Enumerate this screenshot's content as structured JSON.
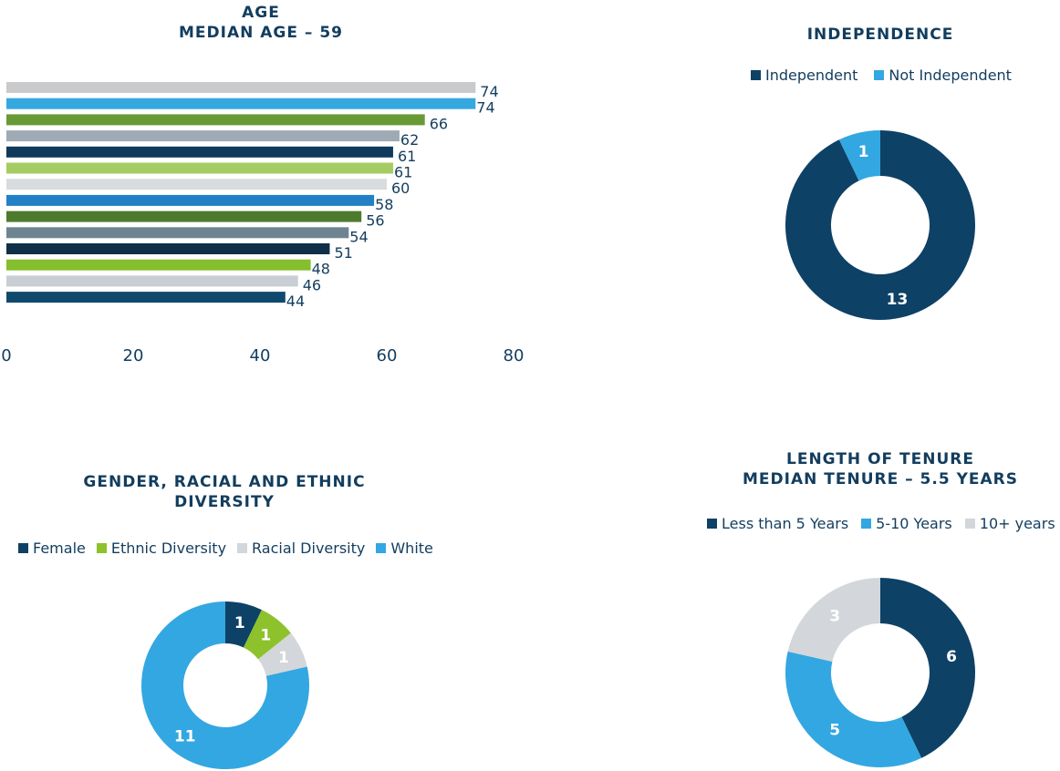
{
  "chart_data": [
    {
      "id": "age",
      "type": "bar",
      "title": "AGE",
      "subtitle": "MEDIAN AGE – 59",
      "orientation": "horizontal",
      "values": [
        74,
        74,
        66,
        62,
        61,
        61,
        60,
        58,
        56,
        54,
        51,
        48,
        46,
        44
      ],
      "labels": [
        "74",
        "74",
        "66",
        "62",
        "61",
        "61",
        "60",
        "58",
        "56",
        "54",
        "51",
        "48",
        "46",
        "44"
      ],
      "colors": [
        "#c9cacb",
        "#35a8e0",
        "#6a9a36",
        "#9eabb5",
        "#0f3a5c",
        "#a4cc62",
        "#d8dcde",
        "#2281c4",
        "#4e7a2e",
        "#6e8591",
        "#0f2f48",
        "#85bf2e",
        "#c8ced3",
        "#0f4a6e"
      ],
      "xlim": [
        0,
        80
      ],
      "xticks": [
        "0",
        "20",
        "40",
        "60",
        "80"
      ],
      "xtick_values": [
        0,
        20,
        40,
        60,
        80
      ],
      "grid": false
    },
    {
      "id": "independence",
      "type": "pie",
      "title": "INDEPENDENCE",
      "legend": [
        "Independent",
        "Not Independent"
      ],
      "values": [
        13,
        1
      ],
      "value_labels": [
        "13",
        "1"
      ],
      "colors": [
        "#0e4166",
        "#33a7e1"
      ],
      "legend_position": "top"
    },
    {
      "id": "diversity",
      "type": "pie",
      "title_line1": "GENDER, RACIAL AND ETHNIC",
      "title_line2": "DIVERSITY",
      "legend": [
        "Female",
        "Ethnic Diversity",
        "Racial Diversity",
        "White"
      ],
      "values": [
        1,
        1,
        1,
        11
      ],
      "value_labels": [
        "1",
        "1",
        "1",
        "11"
      ],
      "colors": [
        "#0e4166",
        "#8dc22c",
        "#d3d6da",
        "#33a7e1"
      ],
      "legend_position": "top"
    },
    {
      "id": "tenure",
      "type": "pie",
      "title": "LENGTH OF TENURE",
      "subtitle": "MEDIAN TENURE – 5.5 YEARS",
      "legend": [
        "Less than 5 Years",
        "5-10 Years",
        "10+ years"
      ],
      "values": [
        6,
        5,
        3
      ],
      "value_labels": [
        "6",
        "5",
        "3"
      ],
      "colors": [
        "#0e4166",
        "#33a7e1",
        "#d3d6da"
      ],
      "legend_position": "top"
    }
  ]
}
